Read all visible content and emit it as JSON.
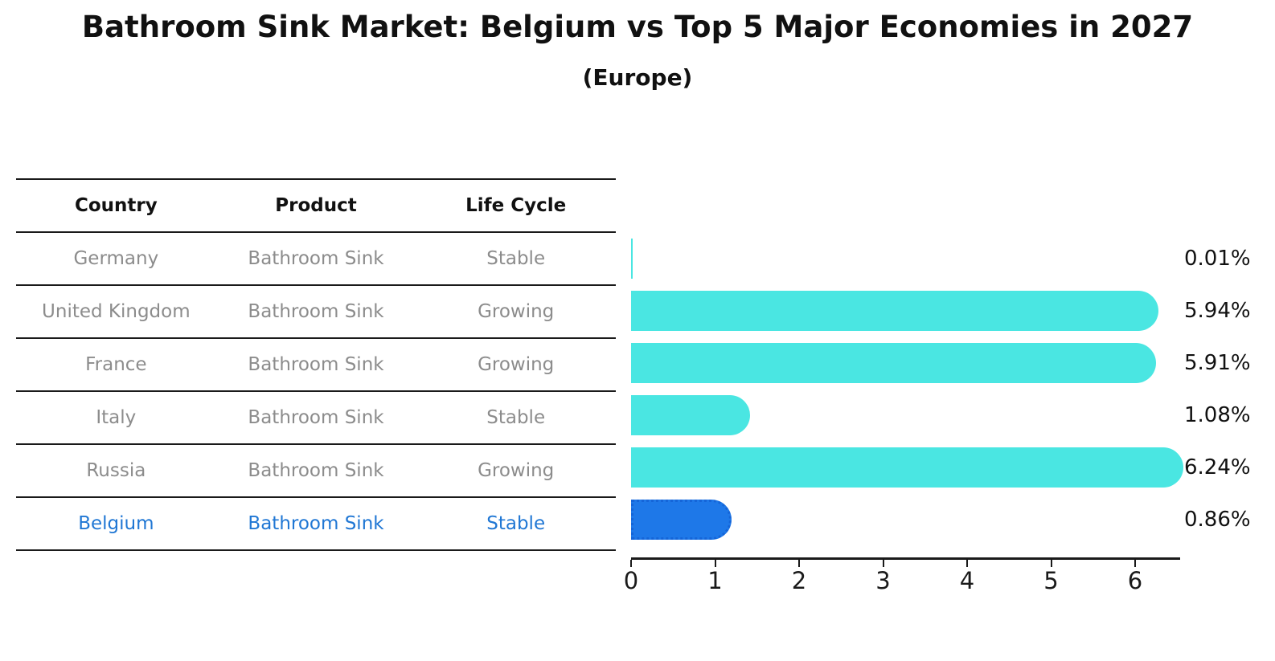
{
  "title": "Bathroom Sink Market: Belgium vs Top 5 Major Economies in 2027",
  "subtitle": "(Europe)",
  "table": {
    "headers": [
      "Country",
      "Product",
      "Life Cycle"
    ],
    "rows": [
      {
        "country": "Germany",
        "product": "Bathroom Sink",
        "life_cycle": "Stable",
        "highlight": false
      },
      {
        "country": "United Kingdom",
        "product": "Bathroom Sink",
        "life_cycle": "Growing",
        "highlight": false
      },
      {
        "country": "France",
        "product": "Bathroom Sink",
        "life_cycle": "Growing",
        "highlight": false
      },
      {
        "country": "Italy",
        "product": "Bathroom Sink",
        "life_cycle": "Stable",
        "highlight": false
      },
      {
        "country": "Russia",
        "product": "Bathroom Sink",
        "life_cycle": "Growing",
        "highlight": true
      },
      {
        "country": "Belgium",
        "product": "Bathroom Sink",
        "life_cycle": "Stable",
        "highlight": true
      }
    ]
  },
  "chart_data": {
    "type": "bar",
    "orientation": "horizontal",
    "title": "Bathroom Sink Market: Belgium vs Top 5 Major Economies in 2027 (Europe)",
    "categories": [
      "Germany",
      "United Kingdom",
      "France",
      "Italy",
      "Russia",
      "Belgium"
    ],
    "values": [
      0.01,
      5.94,
      5.91,
      1.08,
      6.24,
      0.86
    ],
    "value_labels": [
      "0.01%",
      "5.94%",
      "5.91%",
      "1.08%",
      "6.24%",
      "0.86%"
    ],
    "highlight_index": 5,
    "x_ticks": [
      0,
      1,
      2,
      3,
      4,
      5,
      6
    ],
    "xlim": [
      0,
      6.5
    ],
    "grid": false,
    "legend": false
  },
  "colors": {
    "bar": "#4AE6E2",
    "highlight_bar": "#1E78E8",
    "highlight_bar_border": "#1565D8",
    "highlight_text": "#2077D4",
    "table_text": "#8C8C8C",
    "line": "#1a1a1a"
  }
}
